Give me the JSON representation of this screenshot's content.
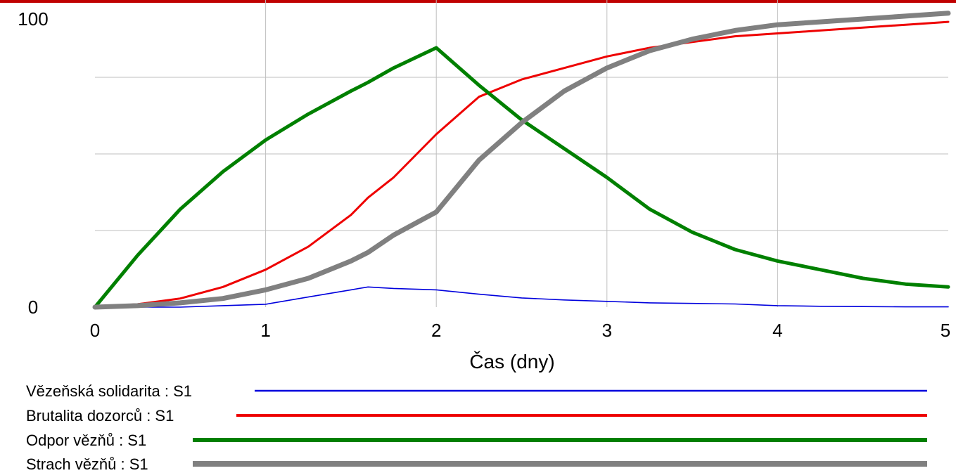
{
  "chart_data": {
    "type": "line",
    "title": "",
    "xlabel": "Čas (dny)",
    "ylabel": "",
    "xlim": [
      0,
      5
    ],
    "ylim": [
      0,
      100
    ],
    "x_ticks": [
      "0",
      "1",
      "2",
      "3",
      "4",
      "5"
    ],
    "y_ticks": [
      "0",
      "100"
    ],
    "grid": true,
    "legend_position": "bottom",
    "x": [
      0,
      0.25,
      0.5,
      0.75,
      1,
      1.25,
      1.5,
      1.6,
      1.75,
      2,
      2.25,
      2.5,
      2.75,
      3,
      3.25,
      3.5,
      3.75,
      4,
      4.25,
      4.5,
      4.75,
      5
    ],
    "series": [
      {
        "name": "Vězeňská solidarita : S1",
        "color": "#0000dd",
        "values": [
          0,
          0,
          0,
          0.5,
          1,
          3.5,
          6,
          7,
          6.5,
          6,
          4.5,
          3.2,
          2.5,
          2,
          1.5,
          1.3,
          1.1,
          0.5,
          0.3,
          0.2,
          0.1,
          0.1
        ]
      },
      {
        "name": "Brutalita dozorců : S1",
        "color": "#ee0000",
        "values": [
          0,
          1,
          3,
          7,
          13,
          21,
          32,
          38,
          45,
          60,
          73,
          79,
          83,
          87,
          90,
          92,
          94,
          95,
          96,
          97,
          98,
          99
        ]
      },
      {
        "name": "Odpor vězňů : S1",
        "color": "#008000",
        "values": [
          0,
          18,
          34,
          47,
          58,
          67,
          75,
          78,
          83,
          90,
          77,
          65,
          55,
          45,
          34,
          26,
          20,
          16,
          13,
          10,
          8,
          7
        ]
      },
      {
        "name": "Strach vězňů : S1",
        "color": "#808080",
        "values": [
          0,
          0.5,
          1.5,
          3,
          6,
          10,
          16,
          19,
          25,
          33,
          51,
          64,
          75,
          83,
          89,
          93,
          96,
          98,
          99,
          100,
          101,
          102
        ]
      }
    ]
  }
}
